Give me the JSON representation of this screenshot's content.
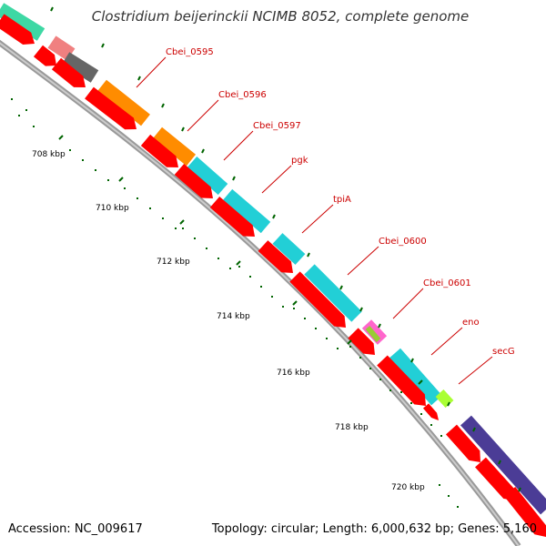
{
  "title": "Clostridium beijerinckii NCIMB 8052, complete genome",
  "footer": {
    "accession": "Accession: NC_009617",
    "summary": "Topology: circular; Length: 6,000,632 bp; Genes: 5,160"
  },
  "gene_labels": [
    "Cbei_0595",
    "Cbei_0596",
    "Cbei_0597",
    "pgk",
    "tpiA",
    "Cbei_0600",
    "Cbei_0601",
    "eno",
    "secG"
  ],
  "kbp_labels": [
    "708 kbp",
    "710 kbp",
    "712 kbp",
    "714 kbp",
    "716 kbp",
    "718 kbp",
    "720 kbp"
  ],
  "colors": {
    "backbone": "#999999",
    "cds_red": "#ff0000",
    "orange": "#ff8c00",
    "cyan": "#22cfd6",
    "gray": "#666666",
    "pink": "#f08080",
    "green_top": "#3ed8a4",
    "purple": "#4b3c96",
    "lime": "#aaff33",
    "label_red": "#cc0000",
    "tick_green": "#006400"
  }
}
